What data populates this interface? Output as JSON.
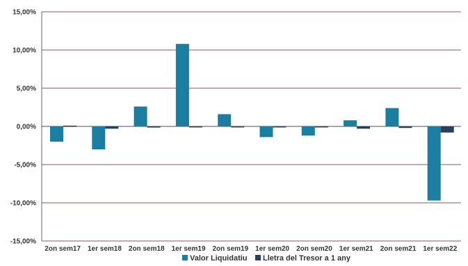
{
  "chart_data": {
    "type": "bar",
    "categories": [
      "2on sem17",
      "1er sem18",
      "2on sem18",
      "1er sem19",
      "2on sem19",
      "1er sem20",
      "2on sem20",
      "1er sem21",
      "2on sem21",
      "1er sem22"
    ],
    "series": [
      {
        "name": "Valor Liquidatiu",
        "color": "#1b7ea0",
        "values": [
          -2.0,
          -3.0,
          2.6,
          10.8,
          1.6,
          -1.4,
          -1.2,
          0.8,
          2.4,
          -9.7
        ]
      },
      {
        "name": "Lletra del Tresor a 1 any",
        "color": "#2a3f58",
        "values": [
          0.1,
          -0.3,
          -0.15,
          -0.1,
          -0.1,
          -0.1,
          -0.1,
          -0.3,
          -0.2,
          -0.8
        ]
      }
    ],
    "y_ticks": [
      "15,00%",
      "10,00%",
      "5,00%",
      "0,00%",
      "-5,00%",
      "-10,00%",
      "-15,00%"
    ],
    "y_tick_values": [
      15,
      10,
      5,
      0,
      -5,
      -10,
      -15
    ],
    "ylim": [
      -15,
      15
    ],
    "grid": true,
    "legend_position": "bottom",
    "title": "",
    "xlabel": "",
    "ylabel": ""
  }
}
